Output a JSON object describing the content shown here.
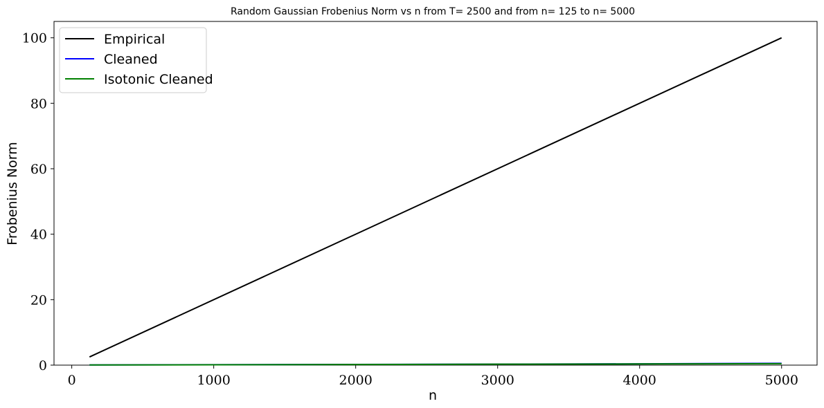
{
  "chart_data": {
    "type": "line",
    "title": "Random Gaussian Frobenius Norm vs n from T= 2500 and from n= 125 to n= 5000",
    "xlabel": "n",
    "ylabel": "Frobenius Norm",
    "xlim": [
      -125,
      5250
    ],
    "ylim": [
      0,
      105
    ],
    "xticks": [
      0,
      1000,
      2000,
      3000,
      4000,
      5000
    ],
    "yticks": [
      0,
      20,
      40,
      60,
      80,
      100
    ],
    "grid": false,
    "legend_position": "top-left",
    "series": [
      {
        "name": "Empirical",
        "color": "#000000",
        "x": [
          125,
          5000
        ],
        "y": [
          2.5,
          100
        ]
      },
      {
        "name": "Cleaned",
        "color": "#0000ff",
        "x": [
          125,
          1000,
          2000,
          3000,
          4000,
          5000
        ],
        "y": [
          0.05,
          0.12,
          0.2,
          0.3,
          0.4,
          0.55
        ]
      },
      {
        "name": "Isotonic Cleaned",
        "color": "#008000",
        "x": [
          125,
          1000,
          2000,
          3000,
          4000,
          5000
        ],
        "y": [
          0.05,
          0.11,
          0.19,
          0.28,
          0.36,
          0.45
        ]
      }
    ]
  }
}
